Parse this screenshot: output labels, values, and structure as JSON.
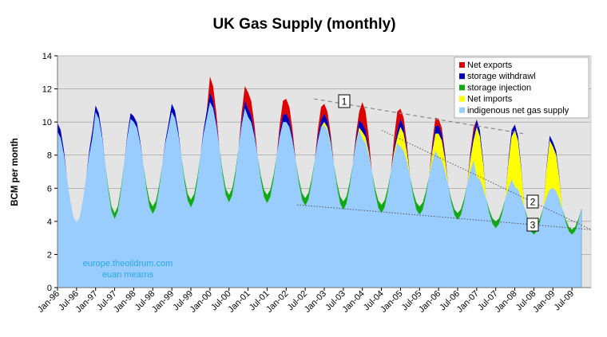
{
  "chart_data": {
    "type": "area",
    "title": "UK Gas Supply (monthly)",
    "ylabel": "BCM per month",
    "xlabel": "",
    "ylim": [
      0,
      14
    ],
    "yticks": [
      0,
      2,
      4,
      6,
      8,
      10,
      12,
      14
    ],
    "grid": true,
    "legend_position": "top-right",
    "x_ticks": [
      "Jan-96",
      "Jul-96",
      "Jan-97",
      "Jul-97",
      "Jan-98",
      "Jul-98",
      "Jan-99",
      "Jul-99",
      "Jan-00",
      "Jul-00",
      "Jan-01",
      "Jul-01",
      "Jan-02",
      "Jul-02",
      "Jan-03",
      "Jul-03",
      "Jan-04",
      "Jul-04",
      "Jan-05",
      "Jul-05",
      "Jan-06",
      "Jul-06",
      "Jan-07",
      "Jul-07",
      "Jan-08",
      "Jul-08",
      "Jan-09",
      "Jul-09"
    ],
    "x_start": "Jan-96",
    "series": [
      {
        "name": "Net exports",
        "color": "#dd0000"
      },
      {
        "name": "storage withdrawl",
        "color": "#0000bb"
      },
      {
        "name": "storage injection",
        "color": "#11aa11"
      },
      {
        "name": "Net imports",
        "color": "#ffff00"
      },
      {
        "name": "indigenous net gas supply",
        "color": "#99ccff"
      }
    ],
    "annual": [
      {
        "pv": 9.4,
        "wint": 0.55,
        "sv": 3.9,
        "sumn": 0.45,
        "inj": 0,
        "exp": 0,
        "imp": 0
      },
      {
        "pv": 10.6,
        "wint": 0.4,
        "sv": 4.5,
        "sumn": 0.4,
        "inj": 0.35,
        "exp": 0,
        "imp": 0
      },
      {
        "pv": 10.0,
        "wint": 0.35,
        "sv": 4.9,
        "sumn": 0.4,
        "inj": 0.45,
        "exp": 0,
        "imp": 0
      },
      {
        "pv": 10.6,
        "wint": 0.5,
        "sv": 5.3,
        "sumn": 0.45,
        "inj": 0.45,
        "exp": 0,
        "imp": 0
      },
      {
        "pv": 11.2,
        "wint": 0.55,
        "sv": 5.6,
        "sumn": 0.5,
        "inj": 0.45,
        "exp": 1.0,
        "imp": 0
      },
      {
        "pv": 10.3,
        "wint": 0.5,
        "sv": 5.6,
        "sumn": 0.5,
        "inj": 0.5,
        "exp": 1.0,
        "imp": 0
      },
      {
        "pv": 10.0,
        "wint": 0.5,
        "sv": 5.4,
        "sumn": 0.5,
        "inj": 0.45,
        "exp": 0.9,
        "imp": 0
      },
      {
        "pv": 9.8,
        "wint": 0.5,
        "sv": 5.2,
        "sumn": 0.5,
        "inj": 0.5,
        "exp": 0.6,
        "imp": 0.2
      },
      {
        "pv": 9.0,
        "wint": 0.5,
        "sv": 5.0,
        "sumn": 0.5,
        "inj": 0.5,
        "exp": 1.3,
        "imp": 0.4
      },
      {
        "pv": 8.5,
        "wint": 0.5,
        "sv": 4.9,
        "sumn": 0.5,
        "inj": 0.5,
        "exp": 0.6,
        "imp": 1.2
      },
      {
        "pv": 7.9,
        "wint": 0.5,
        "sv": 4.5,
        "sumn": 0.5,
        "inj": 0.4,
        "exp": 0.4,
        "imp": 1.4
      },
      {
        "pv": 6.7,
        "wint": 0.45,
        "sv": 4.0,
        "sumn": 0.45,
        "inj": 0.4,
        "exp": 0,
        "imp": 3.0
      },
      {
        "pv": 6.1,
        "wint": 0.35,
        "sv": 3.6,
        "sumn": 0.4,
        "inj": 0.4,
        "exp": 0,
        "imp": 3.4
      },
      {
        "pv": 6.0,
        "wint": 0.3,
        "sv": 3.5,
        "sumn": 0.3,
        "inj": 0.3,
        "exp": 0,
        "imp": 2.5
      }
    ],
    "annotations": [
      {
        "label": "1"
      },
      {
        "label": "2"
      },
      {
        "label": "3"
      }
    ],
    "watermark": [
      "europe.theoildrum.com",
      "euan mearns"
    ]
  }
}
